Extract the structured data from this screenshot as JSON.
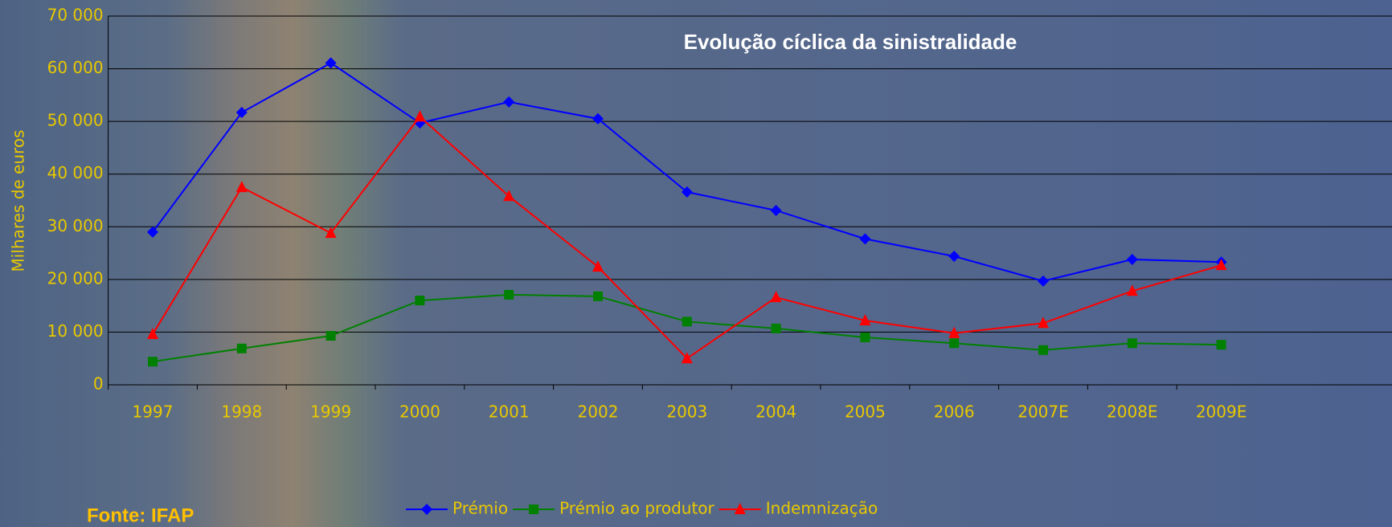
{
  "chart_data": {
    "type": "line",
    "title": "Evolução cíclica da sinistralidade",
    "y_label": "Milhares de euros",
    "source": "Fonte: IFAP",
    "categories": [
      "1997",
      "1998",
      "1999",
      "2000",
      "2001",
      "2002",
      "2003",
      "2004",
      "2005",
      "2006",
      "2007E",
      "2008E",
      "2009E"
    ],
    "series": [
      {
        "name": "Prémio",
        "color": "#0000ff",
        "marker": "diamond",
        "values": [
          29000,
          51700,
          61100,
          49700,
          53700,
          50500,
          36600,
          33100,
          27700,
          24400,
          19700,
          23800,
          23300
        ]
      },
      {
        "name": "Prémio ao produtor",
        "color": "#008000",
        "marker": "square",
        "values": [
          4400,
          6900,
          9300,
          16000,
          17100,
          16800,
          12000,
          10700,
          9000,
          7900,
          6600,
          7900,
          7600
        ]
      },
      {
        "name": "Indemnização",
        "color": "#ff0000",
        "marker": "triangle",
        "values": [
          9600,
          37500,
          28800,
          50900,
          35800,
          22400,
          5000,
          16600,
          12200,
          9800,
          11700,
          17800,
          22700
        ]
      }
    ],
    "ylim": [
      0,
      70000
    ],
    "yticks": [
      0,
      {
        "value": 10000,
        "label": "10 000"
      },
      {
        "value": 20000,
        "label": "20 000"
      },
      {
        "value": 30000,
        "label": "30 000"
      },
      {
        "value": 40000,
        "label": "40 000"
      },
      {
        "value": 50000,
        "label": "50 000"
      },
      {
        "value": 60000,
        "label": "60 000"
      },
      {
        "value": 70000,
        "label": "70 000"
      }
    ],
    "grid": true,
    "legend": "bottom"
  }
}
